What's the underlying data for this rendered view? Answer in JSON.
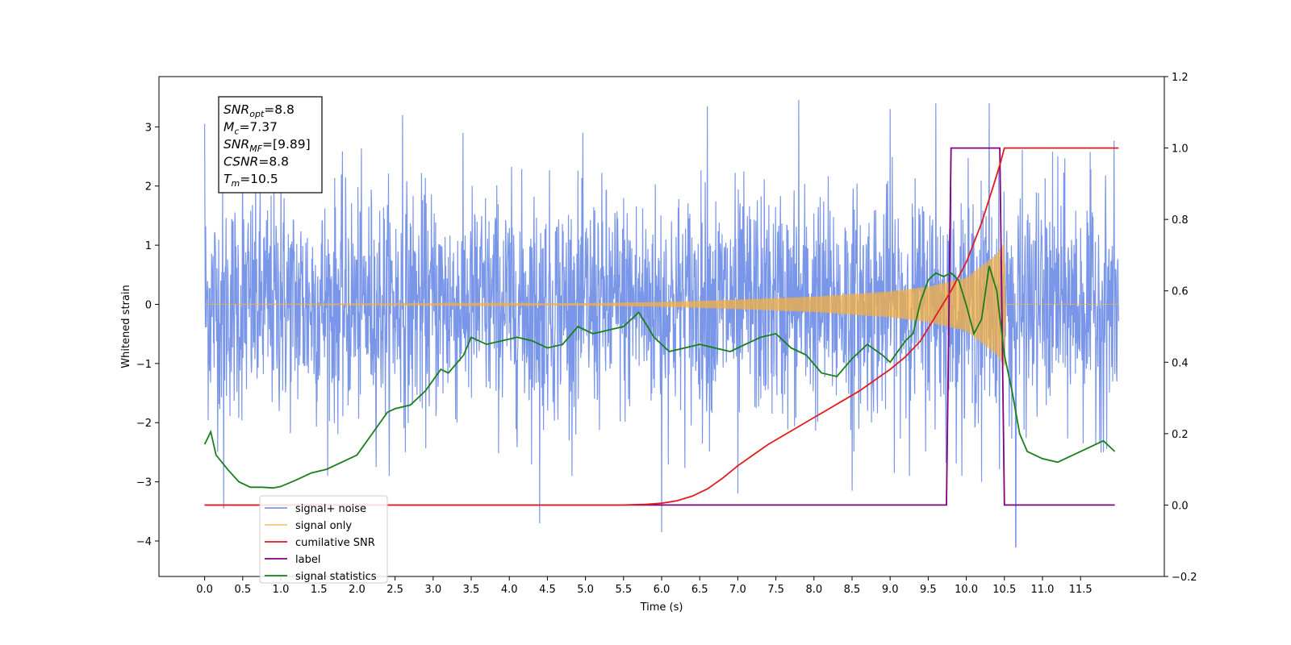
{
  "chart_data": {
    "type": "line",
    "xlabel": "Time (s)",
    "ylabel": "Whitened strain",
    "xlim": [
      -0.6,
      12.6
    ],
    "ylim": [
      -4.6,
      3.85
    ],
    "y2lim": [
      -0.2,
      1.2
    ],
    "xticks": [
      "0.0",
      "0.5",
      "1.0",
      "1.5",
      "2.0",
      "2.5",
      "3.0",
      "3.5",
      "4.0",
      "4.5",
      "5.0",
      "5.5",
      "6.0",
      "6.5",
      "7.0",
      "7.5",
      "8.0",
      "8.5",
      "9.0",
      "9.5",
      "10.0",
      "10.5",
      "11.0",
      "11.5"
    ],
    "yticks": [
      "3",
      "2",
      "1",
      "0",
      "−1",
      "−2",
      "−3",
      "−4"
    ],
    "y2ticks": [
      "1.2",
      "1.0",
      "0.8",
      "0.6",
      "0.4",
      "0.2",
      "0.0",
      "−0.2"
    ],
    "legend": {
      "position": "lower-left",
      "entries": [
        "signal+ noise",
        "signal only",
        "cumilative SNR",
        "label",
        "signal statistics"
      ]
    },
    "annotation_lines": [
      {
        "name": "SNR",
        "sub": "opt",
        "value": "=8.8"
      },
      {
        "name": "M",
        "sub": "c",
        "value": "=7.37"
      },
      {
        "name": "SNR",
        "sub": "MF",
        "value": "=[9.89]"
      },
      {
        "name": "CSNR",
        "sub": "",
        "value": "=8.8"
      },
      {
        "name": "T",
        "sub": "m",
        "value": "=10.5"
      }
    ],
    "colors": {
      "noise": "#6b8be6",
      "signal": "#f5b041",
      "cumulative": "#e41a1c",
      "label": "#800080",
      "statistics": "#1a7f1a"
    },
    "series": [
      {
        "name": "signal+ noise",
        "axis": "left",
        "x_range": [
          0.0,
          12.0
        ],
        "std": 0.95,
        "peaks_up": [
          [
            0.0,
            3.05
          ],
          [
            0.5,
            2.5
          ],
          [
            1.0,
            2.4
          ],
          [
            2.6,
            3.2
          ],
          [
            4.4,
            3.35
          ],
          [
            6.6,
            3.35
          ],
          [
            7.0,
            3.4
          ],
          [
            7.8,
            3.45
          ],
          [
            9.0,
            3.3
          ],
          [
            9.6,
            3.4
          ],
          [
            10.3,
            3.4
          ],
          [
            11.2,
            2.5
          ]
        ],
        "peaks_down": [
          [
            0.25,
            -3.45
          ],
          [
            4.4,
            -3.7
          ],
          [
            6.0,
            -3.85
          ],
          [
            7.0,
            -3.2
          ],
          [
            8.5,
            -3.15
          ],
          [
            10.2,
            -3.0
          ],
          [
            10.65,
            -4.1
          ],
          [
            11.8,
            -2.5
          ]
        ]
      },
      {
        "name": "signal only",
        "axis": "left",
        "x_range": [
          0.0,
          12.0
        ],
        "envelope": [
          [
            0.0,
            0.0
          ],
          [
            5.0,
            0.02
          ],
          [
            6.0,
            0.04
          ],
          [
            7.0,
            0.08
          ],
          [
            8.0,
            0.13
          ],
          [
            9.0,
            0.22
          ],
          [
            9.5,
            0.3
          ],
          [
            10.0,
            0.45
          ],
          [
            10.4,
            0.85
          ],
          [
            10.5,
            1.05
          ],
          [
            10.52,
            0.0
          ],
          [
            12.0,
            0.0
          ]
        ]
      },
      {
        "name": "cumilative SNR",
        "axis": "right",
        "x": [
          0.0,
          5.5,
          5.8,
          6.0,
          6.2,
          6.4,
          6.6,
          6.8,
          7.0,
          7.2,
          7.4,
          7.6,
          7.8,
          8.0,
          8.2,
          8.4,
          8.6,
          8.8,
          9.0,
          9.2,
          9.4,
          9.6,
          9.8,
          10.0,
          10.2,
          10.35,
          10.45,
          10.5,
          12.0
        ],
        "values": [
          0.0,
          0.0,
          0.002,
          0.005,
          0.012,
          0.025,
          0.045,
          0.075,
          0.11,
          0.14,
          0.17,
          0.195,
          0.22,
          0.245,
          0.27,
          0.295,
          0.32,
          0.35,
          0.38,
          0.415,
          0.46,
          0.53,
          0.6,
          0.68,
          0.79,
          0.89,
          0.96,
          1.0,
          1.0
        ]
      },
      {
        "name": "label",
        "axis": "right",
        "x": [
          0.0,
          9.74,
          9.8,
          10.44,
          10.5,
          11.95
        ],
        "values": [
          0.0,
          0.0,
          1.0,
          1.0,
          0.0,
          0.0
        ]
      },
      {
        "name": "signal statistics",
        "axis": "right",
        "x": [
          0.0,
          0.08,
          0.15,
          0.3,
          0.45,
          0.6,
          0.75,
          0.9,
          1.0,
          1.2,
          1.4,
          1.6,
          1.8,
          2.0,
          2.2,
          2.4,
          2.5,
          2.7,
          2.9,
          3.1,
          3.2,
          3.4,
          3.5,
          3.7,
          3.9,
          4.1,
          4.3,
          4.5,
          4.7,
          4.9,
          5.1,
          5.3,
          5.5,
          5.7,
          5.9,
          6.1,
          6.3,
          6.5,
          6.7,
          6.9,
          7.1,
          7.3,
          7.5,
          7.7,
          7.9,
          8.1,
          8.3,
          8.5,
          8.7,
          8.9,
          9.0,
          9.2,
          9.3,
          9.4,
          9.5,
          9.6,
          9.7,
          9.8,
          9.9,
          10.0,
          10.1,
          10.2,
          10.3,
          10.4,
          10.5,
          10.6,
          10.7,
          10.8,
          11.0,
          11.2,
          11.4,
          11.6,
          11.8,
          11.95
        ],
        "values": [
          0.17,
          0.205,
          0.14,
          0.1,
          0.065,
          0.05,
          0.05,
          0.048,
          0.052,
          0.07,
          0.09,
          0.1,
          0.12,
          0.14,
          0.2,
          0.26,
          0.27,
          0.28,
          0.32,
          0.38,
          0.37,
          0.42,
          0.47,
          0.45,
          0.46,
          0.47,
          0.46,
          0.44,
          0.45,
          0.5,
          0.48,
          0.49,
          0.5,
          0.54,
          0.47,
          0.43,
          0.44,
          0.45,
          0.44,
          0.43,
          0.45,
          0.47,
          0.48,
          0.44,
          0.42,
          0.37,
          0.36,
          0.41,
          0.45,
          0.42,
          0.4,
          0.46,
          0.48,
          0.57,
          0.63,
          0.65,
          0.64,
          0.65,
          0.63,
          0.56,
          0.48,
          0.52,
          0.67,
          0.6,
          0.42,
          0.32,
          0.2,
          0.15,
          0.13,
          0.12,
          0.14,
          0.16,
          0.18,
          0.15
        ]
      }
    ]
  }
}
